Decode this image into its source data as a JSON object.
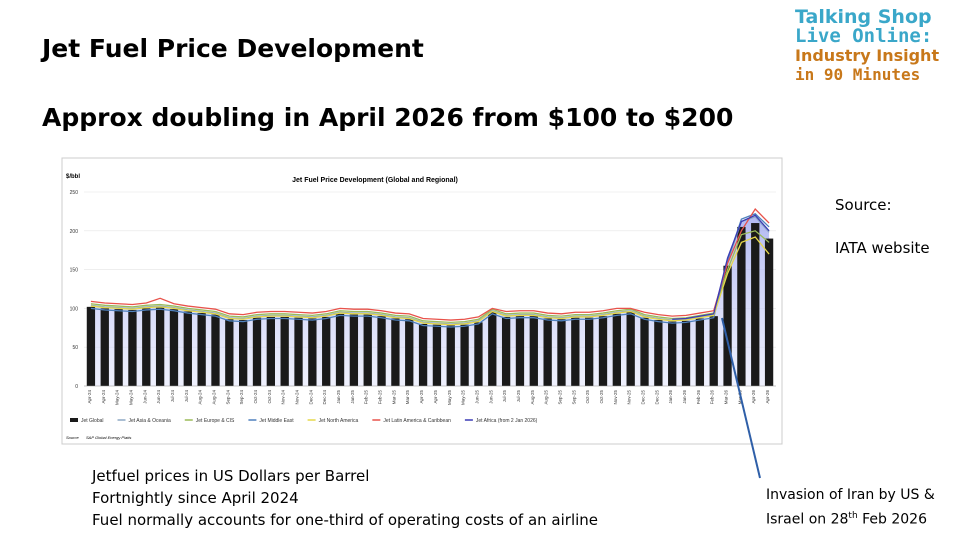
{
  "slide": {
    "title": "Jet Fuel Price Development",
    "subtitle": "Approx doubling in April 2026 from $100 to $200",
    "logo": [
      "Talking Shop",
      "Live Online:",
      "Industry Insight",
      "in 90 Minutes"
    ],
    "source_label": "Source:",
    "source": "IATA website",
    "notes": [
      "Jetfuel prices in US Dollars per Barrel",
      "Fortnightly since April 2024",
      "Fuel normally accounts for one-third of operating costs of an airline"
    ],
    "annotation": {
      "line1": "Invasion of Iran by US &",
      "line2": "Israel on 28",
      "sup": "th",
      "line2_end": " Feb 2026"
    }
  },
  "chart_data": {
    "type": "bar",
    "title": "Jet Fuel Price Development (Global and Regional)",
    "y_label": "$/bbl",
    "source_label": "Source",
    "source": "S&P Global Energy Platts",
    "categories": [
      "Apr-24",
      "Apr-24",
      "May-24",
      "May-24",
      "Jun-24",
      "Jun-24",
      "Jul-24",
      "Jul-24",
      "Aug-24",
      "Aug-24",
      "Sep-24",
      "Sep-24",
      "Oct-24",
      "Oct-24",
      "Nov-24",
      "Nov-24",
      "Dec-24",
      "Dec-24",
      "Jan-25",
      "Jan-25",
      "Feb-25",
      "Feb-25",
      "Mar-25",
      "Mar-25",
      "Apr-25",
      "Apr-25",
      "May-25",
      "May-25",
      "Jun-25",
      "Jun-25",
      "Jul-25",
      "Jul-25",
      "Aug-25",
      "Aug-25",
      "Sep-25",
      "Sep-25",
      "Oct-25",
      "Oct-25",
      "Nov-25",
      "Nov-25",
      "Dec-25",
      "Dec-25",
      "Jan-26",
      "Jan-26",
      "Feb-26",
      "Feb-26",
      "Mar-26",
      "Mar-26",
      "Apr-26",
      "Apr-26"
    ],
    "ylim": [
      0,
      250
    ],
    "yticks": [
      0,
      50,
      100,
      150,
      200,
      250
    ],
    "series": [
      {
        "name": "Jet Global",
        "type": "bar",
        "color": "#1a1a1a",
        "values": [
          102,
          100,
          99,
          98,
          100,
          101,
          99,
          96,
          94,
          92,
          86,
          85,
          88,
          89,
          89,
          88,
          87,
          89,
          93,
          92,
          92,
          90,
          87,
          86,
          80,
          79,
          78,
          79,
          82,
          95,
          89,
          90,
          90,
          87,
          86,
          88,
          88,
          90,
          93,
          95,
          88,
          85,
          83,
          84,
          87,
          90,
          155,
          205,
          210,
          190
        ]
      },
      {
        "name": "Jet Asia & Oceania",
        "type": "line",
        "color": "#8da9c4",
        "values": [
          104,
          102,
          101,
          100,
          102,
          103,
          101,
          98,
          96,
          94,
          88,
          87,
          90,
          91,
          91,
          90,
          89,
          91,
          95,
          94,
          94,
          92,
          89,
          88,
          82,
          81,
          80,
          81,
          84,
          97,
          91,
          92,
          92,
          89,
          88,
          90,
          90,
          92,
          95,
          97,
          90,
          87,
          85,
          86,
          89,
          92,
          160,
          212,
          218,
          198
        ]
      },
      {
        "name": "Jet Europe & CIS",
        "type": "line",
        "color": "#9bbb59",
        "values": [
          106,
          104,
          103,
          102,
          104,
          105,
          103,
          100,
          98,
          96,
          90,
          89,
          92,
          93,
          93,
          92,
          91,
          93,
          97,
          96,
          96,
          94,
          91,
          90,
          84,
          83,
          82,
          83,
          86,
          99,
          93,
          94,
          94,
          91,
          90,
          92,
          92,
          94,
          97,
          99,
          92,
          89,
          87,
          88,
          91,
          94,
          150,
          195,
          200,
          185
        ]
      },
      {
        "name": "Jet Middle East",
        "type": "line",
        "color": "#4f81bd",
        "values": [
          100,
          98,
          97,
          96,
          98,
          99,
          97,
          94,
          92,
          90,
          84,
          83,
          86,
          87,
          87,
          86,
          85,
          87,
          91,
          90,
          90,
          88,
          85,
          84,
          78,
          77,
          76,
          77,
          80,
          93,
          87,
          88,
          88,
          85,
          84,
          86,
          86,
          88,
          91,
          93,
          86,
          83,
          81,
          82,
          85,
          88,
          162,
          215,
          222,
          205
        ]
      },
      {
        "name": "Jet North America",
        "type": "line",
        "color": "#e6d84a",
        "values": [
          103,
          101,
          100,
          99,
          101,
          102,
          100,
          97,
          95,
          93,
          87,
          86,
          89,
          90,
          90,
          89,
          88,
          90,
          94,
          93,
          93,
          91,
          88,
          87,
          81,
          80,
          79,
          80,
          83,
          96,
          90,
          91,
          91,
          88,
          87,
          89,
          89,
          91,
          94,
          96,
          89,
          86,
          84,
          85,
          88,
          91,
          145,
          185,
          192,
          170
        ]
      },
      {
        "name": "Jet Latin America & Caribbean",
        "type": "line",
        "color": "#e8524a",
        "values": [
          109,
          107,
          106,
          105,
          107,
          113,
          106,
          103,
          101,
          99,
          93,
          92,
          95,
          96,
          96,
          95,
          94,
          96,
          100,
          99,
          99,
          97,
          94,
          93,
          87,
          86,
          85,
          86,
          89,
          100,
          96,
          97,
          97,
          94,
          93,
          95,
          95,
          97,
          100,
          100,
          95,
          92,
          90,
          91,
          94,
          97,
          158,
          200,
          228,
          210
        ]
      },
      {
        "name": "Jet Africa (from 2 Jan 2026)",
        "type": "line",
        "color": "#3b3bb5",
        "values": [
          null,
          null,
          null,
          null,
          null,
          null,
          null,
          null,
          null,
          null,
          null,
          null,
          null,
          null,
          null,
          null,
          null,
          null,
          null,
          null,
          null,
          null,
          null,
          null,
          null,
          null,
          null,
          null,
          null,
          null,
          null,
          null,
          null,
          null,
          null,
          null,
          null,
          null,
          null,
          null,
          null,
          null,
          86,
          87,
          90,
          93,
          165,
          212,
          220,
          200
        ]
      }
    ]
  }
}
